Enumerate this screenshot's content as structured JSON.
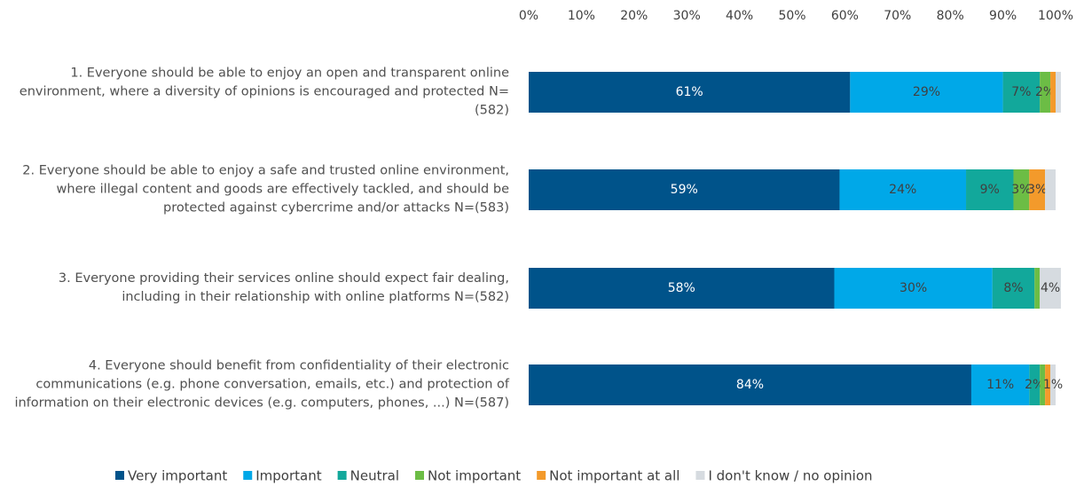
{
  "chart_data": {
    "type": "stacked-bar-horizontal",
    "categories": [
      "1. Everyone should be able to enjoy an open and transparent online environment, where a diversity of opinions is encouraged and protected N=(582)",
      "2. Everyone should be able to enjoy a safe and trusted online environment, where illegal content and goods are effectively tackled, and should be protected against cybercrime and/or attacks N=(583)",
      "3. Everyone providing their services online should expect fair dealing, including in their relationship with online platforms N=(582)",
      "4. Everyone should benefit from confidentiality of their electronic communications (e.g. phone conversation, emails, etc.) and protection of information on their electronic devices (e.g. computers, phones, ...) N=(587)"
    ],
    "series": [
      {
        "name": "Very important",
        "color": "#00538a",
        "values": [
          61,
          59,
          58,
          84
        ],
        "value_labels": [
          "61%",
          "59%",
          "58%",
          "84%"
        ]
      },
      {
        "name": "Important",
        "color": "#00a8e8",
        "values": [
          29,
          24,
          30,
          11
        ],
        "value_labels": [
          "29%",
          "24%",
          "30%",
          "11%"
        ]
      },
      {
        "name": "Neutral",
        "color": "#12a89b",
        "values": [
          7,
          9,
          8,
          2
        ],
        "value_labels": [
          "7%",
          "9%",
          "8%",
          "2%"
        ]
      },
      {
        "name": "Not important",
        "color": "#6cbd45",
        "values": [
          2,
          3,
          1,
          1
        ],
        "value_labels": [
          "2%",
          "3%",
          null,
          null
        ]
      },
      {
        "name": "Not important at all",
        "color": "#f39a2b",
        "values": [
          1,
          3,
          0,
          1
        ],
        "value_labels": [
          null,
          "3%",
          null,
          null
        ]
      },
      {
        "name": "I don't know / no opinion",
        "color": "#d6dbe0",
        "values": [
          1,
          2,
          4,
          1
        ],
        "value_labels": [
          null,
          null,
          "4%",
          "1%"
        ]
      }
    ],
    "xlim": [
      0,
      100
    ],
    "xticks": [
      {
        "value": 0,
        "label": "0%"
      },
      {
        "value": 10,
        "label": "10%"
      },
      {
        "value": 20,
        "label": "20%"
      },
      {
        "value": 30,
        "label": "30%"
      },
      {
        "value": 40,
        "label": "40%"
      },
      {
        "value": 50,
        "label": "50%"
      },
      {
        "value": 60,
        "label": "60%"
      },
      {
        "value": 70,
        "label": "70%"
      },
      {
        "value": 80,
        "label": "80%"
      },
      {
        "value": 90,
        "label": "90%"
      },
      {
        "value": 100,
        "label": "100%"
      }
    ],
    "legend": "bottom"
  }
}
